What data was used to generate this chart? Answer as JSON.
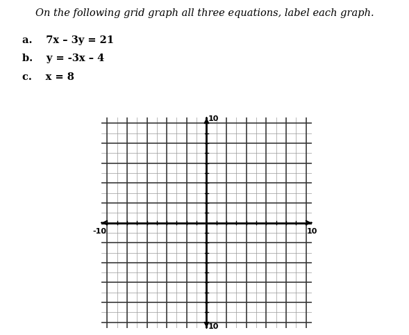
{
  "title": "On the following grid graph all three equations, label each graph.",
  "equations": [
    "a.  7x – 3y = 21",
    "b.  y = -3x – 4",
    "c.  x = 8"
  ],
  "xmin": -10,
  "xmax": 10,
  "ymin": -10,
  "ymax": 10,
  "axis_label_fontsize": 8,
  "title_fontsize": 10.5,
  "eq_fontsize": 10.5,
  "background_color": "#ffffff",
  "grid_minor_color": "#999999",
  "grid_major_color": "#333333",
  "axis_color": "#000000",
  "label_10": "10",
  "label_neg10": "-10"
}
